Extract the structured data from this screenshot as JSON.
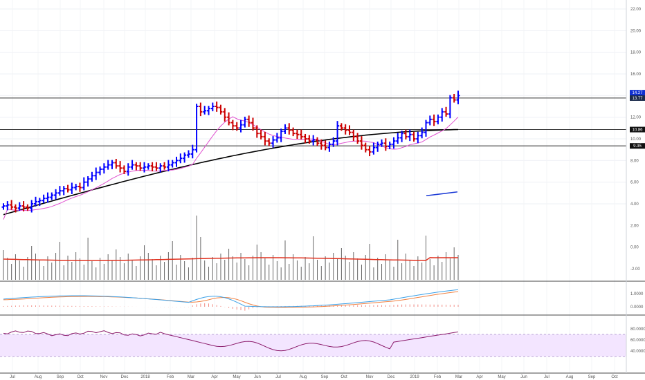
{
  "chart_data": {
    "type": "ohlc",
    "x_ticks": [
      "Jul",
      "Aug",
      "Sep",
      "Oct",
      "Nov",
      "Dec",
      "2018",
      "Feb",
      "Mar",
      "Apr",
      "May",
      "Jun",
      "Jul",
      "Aug",
      "Sep",
      "Oct",
      "Nov",
      "Dec",
      "2019",
      "Feb",
      "Mar",
      "Apr",
      "May",
      "Jun",
      "Jul",
      "Aug",
      "Sep",
      "Oct"
    ],
    "y_ticks": [
      "22.00",
      "20.00",
      "18.00",
      "16.00",
      "14.00",
      "12.00",
      "10.00",
      "8.00",
      "6.00",
      "4.00",
      "2.00",
      "0.00",
      "-2.00"
    ],
    "ylim": [
      -2,
      22
    ],
    "price_tags": [
      "14.27",
      "13.77",
      "10.86",
      "9.35"
    ],
    "horizontal_levels": [
      13.77,
      10.86,
      9.35
    ],
    "up_color": "#0000ff",
    "down_color": "#cc0000",
    "sma_short_color": "#e052d0",
    "sma_long_color": "#000000",
    "close": [
      3.8,
      3.9,
      3.7,
      3.6,
      3.8,
      3.7,
      3.6,
      4.0,
      4.2,
      4.3,
      4.5,
      4.6,
      4.8,
      5.0,
      5.2,
      5.4,
      5.3,
      5.5,
      5.6,
      5.5,
      6.0,
      6.3,
      6.6,
      6.9,
      7.2,
      7.4,
      7.6,
      7.8,
      7.5,
      7.3,
      7.0,
      7.4,
      7.6,
      7.5,
      7.3,
      7.4,
      7.5,
      7.4,
      7.3,
      7.5,
      7.4,
      7.6,
      7.8,
      8.0,
      8.2,
      8.5,
      8.6,
      9.0,
      13.0,
      12.5,
      12.6,
      12.8,
      13.0,
      12.9,
      12.5,
      12.0,
      11.5,
      11.2,
      11.0,
      11.3,
      11.8,
      11.5,
      11.0,
      10.5,
      10.2,
      9.8,
      9.6,
      9.9,
      10.1,
      10.7,
      11.0,
      10.8,
      10.5,
      10.4,
      10.2,
      10.0,
      9.8,
      9.9,
      9.6,
      9.4,
      9.2,
      9.5,
      9.8,
      11.2,
      11.0,
      10.8,
      10.6,
      10.2,
      9.8,
      9.4,
      9.0,
      8.8,
      9.2,
      9.5,
      9.6,
      9.3,
      9.5,
      9.8,
      10.1,
      10.5,
      10.2,
      10.4,
      10.0,
      10.3,
      10.6,
      11.5,
      11.8,
      11.6,
      12.0,
      12.5,
      12.3,
      13.8,
      13.6,
      14.0
    ],
    "sma_short_end": 11.5,
    "sma_long_end": 10.86,
    "indicators": [
      {
        "type": "volume",
        "y_ticks": [
          "2.00",
          "0.00",
          "-2.00"
        ],
        "ma_color": "#e0301e",
        "bar_color": "#666666"
      },
      {
        "type": "macd",
        "y_ticks": [
          "1.0000",
          "0.0000"
        ],
        "macd_color": "#3aa0e8",
        "signal_color": "#f08040",
        "hist_color": "#f28b82"
      },
      {
        "type": "rsi",
        "y_ticks": [
          "80.0000",
          "60.0000",
          "40.0000"
        ],
        "levels": [
          70,
          30
        ],
        "line_color": "#8b1a6b",
        "band_color": "#f3e5ff"
      }
    ]
  }
}
